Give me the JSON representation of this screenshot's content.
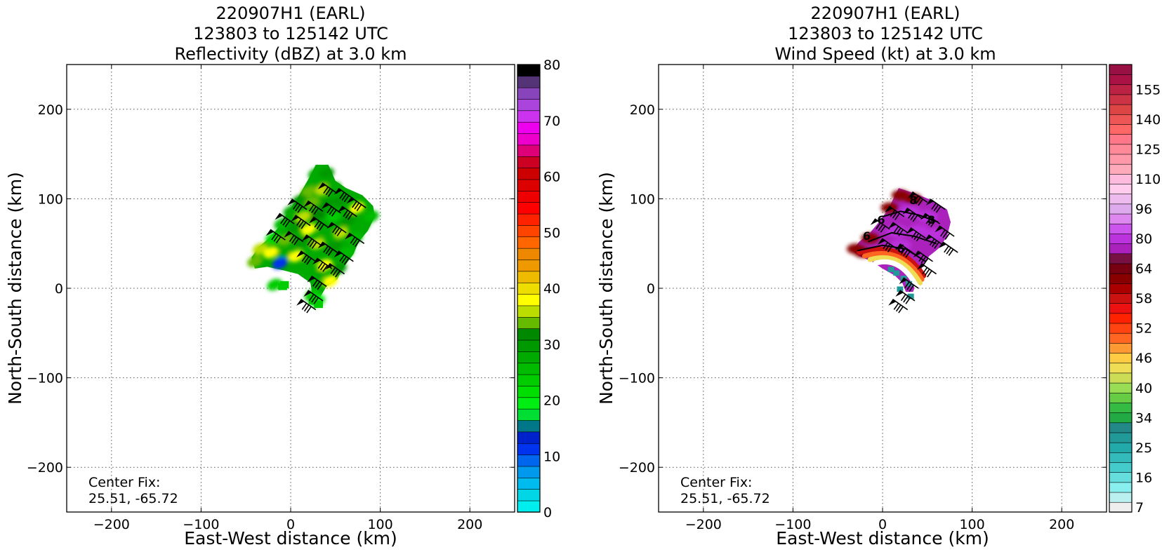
{
  "chart_data": [
    {
      "type": "heatmap",
      "title": [
        "220907H1 (EARL)",
        "123803 to 125142 UTC",
        "Reflectivity (dBZ) at 3.0 km"
      ],
      "xlabel": "East-West distance (km)",
      "ylabel": "North-South distance (km)",
      "xlim": [
        -250,
        250
      ],
      "ylim": [
        -250,
        250
      ],
      "xticks": [
        -200,
        -100,
        0,
        100,
        200
      ],
      "yticks": [
        -200,
        -100,
        0,
        100,
        200
      ],
      "xtick_labels": [
        "−200",
        "−100",
        "0",
        "100",
        "200"
      ],
      "ytick_labels": [
        "−200",
        "−100",
        "0",
        "100",
        "200"
      ],
      "grid": true,
      "annotation": [
        "Center Fix:",
        "25.51, -65.72"
      ],
      "colorbar": {
        "min": 0,
        "max": 80,
        "ticks": [
          0,
          10,
          20,
          30,
          40,
          50,
          60,
          70,
          80
        ],
        "colors": [
          "#00eeee",
          "#00d6e6",
          "#00bbee",
          "#0099ee",
          "#0066ee",
          "#0033ee",
          "#0022cc",
          "#007788",
          "#00dd33",
          "#00ee11",
          "#00dd00",
          "#00cc00",
          "#00bb00",
          "#00aa00",
          "#009900",
          "#008800",
          "#66bb00",
          "#bbdd00",
          "#ffff00",
          "#eedd00",
          "#eebb00",
          "#ee9900",
          "#ee8800",
          "#ff6600",
          "#ff4400",
          "#ff2200",
          "#ff0000",
          "#ee0000",
          "#dd0000",
          "#cc0000",
          "#cc0022",
          "#dd0077",
          "#ee00cc",
          "#ee00ee",
          "#cc33ee",
          "#aa44dd",
          "#8844bb",
          "#553377",
          "#000000"
        ]
      },
      "field": [
        {
          "x": 28,
          "y": 128,
          "v": 28
        },
        {
          "x": 40,
          "y": 128,
          "v": 30
        },
        {
          "x": 32,
          "y": 118,
          "v": 28
        },
        {
          "x": 20,
          "y": 108,
          "v": 34
        },
        {
          "x": 36,
          "y": 110,
          "v": 36
        },
        {
          "x": 48,
          "y": 112,
          "v": 28
        },
        {
          "x": 10,
          "y": 98,
          "v": 30
        },
        {
          "x": 24,
          "y": 96,
          "v": 33
        },
        {
          "x": 40,
          "y": 94,
          "v": 30
        },
        {
          "x": 56,
          "y": 98,
          "v": 30
        },
        {
          "x": 74,
          "y": 90,
          "v": 38
        },
        {
          "x": 90,
          "y": 80,
          "v": 26
        },
        {
          "x": 0,
          "y": 86,
          "v": 28
        },
        {
          "x": 14,
          "y": 80,
          "v": 36
        },
        {
          "x": 30,
          "y": 82,
          "v": 32
        },
        {
          "x": 48,
          "y": 80,
          "v": 24
        },
        {
          "x": 64,
          "y": 76,
          "v": 30
        },
        {
          "x": 80,
          "y": 70,
          "v": 28
        },
        {
          "x": -10,
          "y": 72,
          "v": 26
        },
        {
          "x": 4,
          "y": 68,
          "v": 30
        },
        {
          "x": 20,
          "y": 66,
          "v": 38
        },
        {
          "x": 38,
          "y": 66,
          "v": 28
        },
        {
          "x": 56,
          "y": 62,
          "v": 36
        },
        {
          "x": 72,
          "y": 56,
          "v": 26
        },
        {
          "x": -20,
          "y": 56,
          "v": 22
        },
        {
          "x": -6,
          "y": 54,
          "v": 34
        },
        {
          "x": 12,
          "y": 52,
          "v": 30
        },
        {
          "x": 30,
          "y": 50,
          "v": 36
        },
        {
          "x": 48,
          "y": 46,
          "v": 30
        },
        {
          "x": 62,
          "y": 40,
          "v": 26
        },
        {
          "x": -34,
          "y": 44,
          "v": 36
        },
        {
          "x": -22,
          "y": 40,
          "v": 38
        },
        {
          "x": -8,
          "y": 38,
          "v": 28
        },
        {
          "x": 6,
          "y": 36,
          "v": 38
        },
        {
          "x": 22,
          "y": 30,
          "v": 28
        },
        {
          "x": 38,
          "y": 26,
          "v": 38
        },
        {
          "x": 54,
          "y": 22,
          "v": 30
        },
        {
          "x": -40,
          "y": 30,
          "v": 34
        },
        {
          "x": 30,
          "y": 14,
          "v": 28
        },
        {
          "x": 44,
          "y": 8,
          "v": 38
        },
        {
          "x": -12,
          "y": 28,
          "v": 12
        },
        {
          "x": -18,
          "y": 4,
          "v": 24
        },
        {
          "x": 24,
          "y": -8,
          "v": 24
        },
        {
          "x": 30,
          "y": -14,
          "v": 20
        }
      ],
      "barbs": [
        {
          "x": 52,
          "y": 106
        },
        {
          "x": 70,
          "y": 100
        },
        {
          "x": 84,
          "y": 90
        },
        {
          "x": 18,
          "y": 88
        },
        {
          "x": 36,
          "y": 86
        },
        {
          "x": 56,
          "y": 84
        },
        {
          "x": 74,
          "y": 80
        },
        {
          "x": 4,
          "y": 72
        },
        {
          "x": 22,
          "y": 70
        },
        {
          "x": 42,
          "y": 68
        },
        {
          "x": 62,
          "y": 62
        },
        {
          "x": 82,
          "y": 50
        },
        {
          "x": -6,
          "y": 54
        },
        {
          "x": 14,
          "y": 52
        },
        {
          "x": 34,
          "y": 48
        },
        {
          "x": 52,
          "y": 40
        },
        {
          "x": 70,
          "y": 30
        },
        {
          "x": 28,
          "y": 30
        },
        {
          "x": 46,
          "y": 22
        },
        {
          "x": 60,
          "y": 16
        },
        {
          "x": 40,
          "y": 2
        },
        {
          "x": 36,
          "y": -14
        },
        {
          "x": 28,
          "y": -24
        }
      ]
    },
    {
      "type": "heatmap",
      "title": [
        "220907H1 (EARL)",
        "123803 to 125142 UTC",
        "Wind Speed (kt) at 3.0 km"
      ],
      "xlabel": "East-West distance (km)",
      "ylabel": "North-South distance (km)",
      "xlim": [
        -250,
        250
      ],
      "ylim": [
        -250,
        250
      ],
      "xticks": [
        -200,
        -100,
        0,
        100,
        200
      ],
      "yticks": [
        -200,
        -100,
        0,
        100,
        200
      ],
      "xtick_labels": [
        "−200",
        "−100",
        "0",
        "100",
        "200"
      ],
      "ytick_labels": [
        "−200",
        "−100",
        "0",
        "100",
        "200"
      ],
      "grid": true,
      "annotation": [
        "Center Fix:",
        "25.51, -65.72"
      ],
      "colorbar": {
        "tick_labels": [
          "7",
          "16",
          "25",
          "34",
          "40",
          "46",
          "52",
          "58",
          "64",
          "80",
          "96",
          "110",
          "125",
          "140",
          "155"
        ],
        "colors": [
          "#eeeeee",
          "#bbf0f0",
          "#88eeee",
          "#66dddd",
          "#44cccc",
          "#33bbbb",
          "#22aaaa",
          "#229999",
          "#228888",
          "#22aa44",
          "#33bb44",
          "#66cc44",
          "#99dd55",
          "#ccdd55",
          "#eedd55",
          "#ffcc44",
          "#ff9933",
          "#ff6622",
          "#ff4411",
          "#ff2200",
          "#ee1111",
          "#cc1111",
          "#aa0000",
          "#880000",
          "#770011",
          "#771144",
          "#aa22bb",
          "#bb33dd",
          "#cc55ee",
          "#dd88ee",
          "#ddaaee",
          "#eebbee",
          "#ffccee",
          "#ffbbdd",
          "#ffaabb",
          "#ff99aa",
          "#ff8899",
          "#ff7788",
          "#ff6666",
          "#ee5555",
          "#dd4444",
          "#cc3344",
          "#bb2244",
          "#aa1144",
          "#991144"
        ]
      },
      "contour_labels": [
        "8",
        "6",
        "8",
        "6",
        "6"
      ],
      "barbs": [
        {
          "x": 50,
          "y": 96
        },
        {
          "x": 70,
          "y": 88
        },
        {
          "x": 24,
          "y": 80
        },
        {
          "x": 44,
          "y": 78
        },
        {
          "x": 64,
          "y": 72
        },
        {
          "x": 80,
          "y": 58
        },
        {
          "x": 8,
          "y": 66
        },
        {
          "x": 28,
          "y": 62
        },
        {
          "x": 48,
          "y": 56
        },
        {
          "x": 68,
          "y": 48
        },
        {
          "x": 84,
          "y": 40
        },
        {
          "x": 16,
          "y": 44
        },
        {
          "x": 36,
          "y": 38
        },
        {
          "x": 56,
          "y": 30
        },
        {
          "x": 60,
          "y": 16
        },
        {
          "x": 40,
          "y": 0
        },
        {
          "x": 36,
          "y": -14
        },
        {
          "x": 28,
          "y": -24
        }
      ]
    }
  ]
}
